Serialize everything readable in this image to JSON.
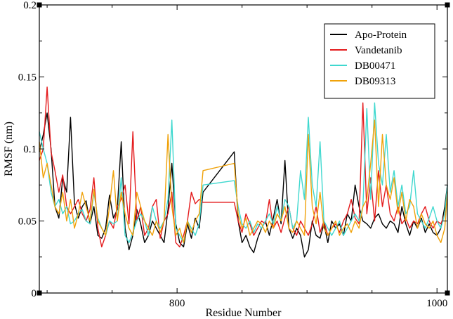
{
  "chart_data": {
    "type": "line",
    "title": "",
    "xlabel": "Residue Number",
    "ylabel": "RMSF (nm)",
    "xlim": [
      694,
      1008
    ],
    "ylim": [
      0,
      0.2
    ],
    "xticks": [
      {
        "value": 800,
        "label": "800"
      },
      {
        "value": 1000,
        "label": "1000"
      }
    ],
    "yticks": [
      {
        "value": 0,
        "label": "0"
      },
      {
        "value": 0.05,
        "label": "0.05"
      },
      {
        "value": 0.1,
        "label": "0.1"
      },
      {
        "value": 0.15,
        "label": "0.15"
      },
      {
        "value": 0.2,
        "label": "0.2"
      }
    ],
    "grid": false,
    "legend_position": "top-right",
    "series": [
      {
        "name": "Apo-Protein",
        "color": "#000000",
        "x": [
          694,
          697,
          700,
          703,
          706,
          709,
          712,
          715,
          718,
          721,
          724,
          727,
          730,
          733,
          736,
          739,
          742,
          745,
          748,
          751,
          754,
          757,
          760,
          763,
          766,
          769,
          772,
          775,
          778,
          781,
          784,
          787,
          790,
          793,
          796,
          799,
          802,
          805,
          808,
          811,
          814,
          817,
          820,
          844,
          847,
          850,
          853,
          856,
          859,
          862,
          865,
          868,
          871,
          874,
          877,
          880,
          883,
          886,
          889,
          892,
          895,
          898,
          901,
          904,
          907,
          910,
          913,
          916,
          919,
          922,
          925,
          928,
          931,
          934,
          937,
          940,
          943,
          946,
          949,
          952,
          955,
          958,
          961,
          964,
          967,
          970,
          973,
          976,
          979,
          982,
          985,
          988,
          991,
          994,
          997,
          1000,
          1003,
          1006,
          1008
        ],
        "values": [
          0.098,
          0.11,
          0.125,
          0.1,
          0.06,
          0.052,
          0.08,
          0.07,
          0.122,
          0.062,
          0.052,
          0.06,
          0.064,
          0.048,
          0.06,
          0.04,
          0.038,
          0.045,
          0.068,
          0.052,
          0.058,
          0.105,
          0.045,
          0.03,
          0.04,
          0.058,
          0.048,
          0.035,
          0.04,
          0.05,
          0.045,
          0.04,
          0.035,
          0.058,
          0.09,
          0.048,
          0.035,
          0.032,
          0.048,
          0.038,
          0.052,
          0.045,
          0.07,
          0.098,
          0.05,
          0.035,
          0.04,
          0.032,
          0.028,
          0.038,
          0.045,
          0.05,
          0.04,
          0.052,
          0.065,
          0.048,
          0.092,
          0.045,
          0.038,
          0.045,
          0.04,
          0.025,
          0.03,
          0.05,
          0.04,
          0.038,
          0.048,
          0.035,
          0.05,
          0.045,
          0.048,
          0.04,
          0.055,
          0.05,
          0.075,
          0.06,
          0.05,
          0.048,
          0.045,
          0.052,
          0.055,
          0.048,
          0.045,
          0.05,
          0.048,
          0.042,
          0.06,
          0.048,
          0.04,
          0.05,
          0.045,
          0.052,
          0.042,
          0.048,
          0.042,
          0.04,
          0.045,
          0.06,
          0.075
        ]
      },
      {
        "name": "Vandetanib",
        "color": "#e41a1c",
        "x": [
          694,
          697,
          700,
          703,
          706,
          709,
          712,
          715,
          718,
          721,
          724,
          727,
          730,
          733,
          736,
          739,
          742,
          745,
          748,
          751,
          754,
          757,
          760,
          763,
          766,
          769,
          772,
          775,
          778,
          781,
          784,
          787,
          790,
          793,
          796,
          799,
          802,
          805,
          808,
          811,
          814,
          817,
          820,
          844,
          847,
          850,
          853,
          856,
          859,
          862,
          865,
          868,
          871,
          874,
          877,
          880,
          883,
          886,
          889,
          892,
          895,
          898,
          901,
          904,
          907,
          910,
          913,
          916,
          919,
          922,
          925,
          928,
          931,
          934,
          937,
          940,
          943,
          946,
          949,
          952,
          955,
          958,
          961,
          964,
          967,
          970,
          973,
          976,
          979,
          982,
          985,
          988,
          991,
          994,
          997,
          1000,
          1003,
          1006,
          1008
        ],
        "values": [
          0.092,
          0.1,
          0.143,
          0.098,
          0.085,
          0.07,
          0.082,
          0.06,
          0.055,
          0.06,
          0.065,
          0.055,
          0.05,
          0.058,
          0.08,
          0.045,
          0.032,
          0.04,
          0.05,
          0.045,
          0.06,
          0.065,
          0.075,
          0.048,
          0.112,
          0.05,
          0.06,
          0.04,
          0.045,
          0.06,
          0.065,
          0.038,
          0.05,
          0.055,
          0.07,
          0.035,
          0.032,
          0.04,
          0.05,
          0.07,
          0.062,
          0.065,
          0.063,
          0.063,
          0.05,
          0.042,
          0.055,
          0.048,
          0.04,
          0.045,
          0.05,
          0.048,
          0.065,
          0.045,
          0.05,
          0.042,
          0.052,
          0.06,
          0.045,
          0.04,
          0.05,
          0.045,
          0.04,
          0.048,
          0.06,
          0.042,
          0.05,
          0.04,
          0.045,
          0.048,
          0.042,
          0.05,
          0.055,
          0.065,
          0.052,
          0.048,
          0.132,
          0.055,
          0.08,
          0.05,
          0.085,
          0.06,
          0.075,
          0.055,
          0.05,
          0.06,
          0.048,
          0.052,
          0.045,
          0.05,
          0.048,
          0.055,
          0.06,
          0.05,
          0.045,
          0.05,
          0.048,
          0.055,
          0.065
        ]
      },
      {
        "name": "DB00471",
        "color": "#3fd8cf",
        "x": [
          694,
          697,
          700,
          703,
          706,
          709,
          712,
          715,
          718,
          721,
          724,
          727,
          730,
          733,
          736,
          739,
          742,
          745,
          748,
          751,
          754,
          757,
          760,
          763,
          766,
          769,
          772,
          775,
          778,
          781,
          784,
          787,
          790,
          793,
          796,
          799,
          802,
          805,
          808,
          811,
          814,
          817,
          820,
          844,
          847,
          850,
          853,
          856,
          859,
          862,
          865,
          868,
          871,
          874,
          877,
          880,
          883,
          886,
          889,
          892,
          895,
          898,
          901,
          904,
          907,
          910,
          913,
          916,
          919,
          922,
          925,
          928,
          931,
          934,
          937,
          940,
          943,
          946,
          949,
          952,
          955,
          958,
          961,
          964,
          967,
          970,
          973,
          976,
          979,
          982,
          985,
          988,
          991,
          994,
          997,
          1000,
          1003,
          1006,
          1008
        ],
        "values": [
          0.112,
          0.1,
          0.09,
          0.07,
          0.06,
          0.065,
          0.055,
          0.06,
          0.048,
          0.05,
          0.055,
          0.058,
          0.05,
          0.048,
          0.07,
          0.052,
          0.045,
          0.04,
          0.05,
          0.048,
          0.05,
          0.08,
          0.04,
          0.035,
          0.042,
          0.05,
          0.055,
          0.05,
          0.04,
          0.06,
          0.05,
          0.045,
          0.05,
          0.065,
          0.12,
          0.045,
          0.04,
          0.035,
          0.05,
          0.045,
          0.04,
          0.048,
          0.075,
          0.078,
          0.06,
          0.048,
          0.045,
          0.05,
          0.042,
          0.048,
          0.045,
          0.05,
          0.055,
          0.048,
          0.06,
          0.05,
          0.065,
          0.06,
          0.045,
          0.05,
          0.085,
          0.065,
          0.122,
          0.075,
          0.06,
          0.105,
          0.05,
          0.045,
          0.04,
          0.045,
          0.05,
          0.04,
          0.045,
          0.05,
          0.055,
          0.05,
          0.06,
          0.128,
          0.065,
          0.132,
          0.09,
          0.075,
          0.11,
          0.07,
          0.085,
          0.06,
          0.075,
          0.055,
          0.06,
          0.085,
          0.055,
          0.05,
          0.045,
          0.052,
          0.06,
          0.05,
          0.045,
          0.055,
          0.075
        ]
      },
      {
        "name": "DB09313",
        "color": "#f0a20a",
        "x": [
          694,
          697,
          700,
          703,
          706,
          709,
          712,
          715,
          718,
          721,
          724,
          727,
          730,
          733,
          736,
          739,
          742,
          745,
          748,
          751,
          754,
          757,
          760,
          763,
          766,
          769,
          772,
          775,
          778,
          781,
          784,
          787,
          790,
          793,
          796,
          799,
          802,
          805,
          808,
          811,
          814,
          817,
          820,
          844,
          847,
          850,
          853,
          856,
          859,
          862,
          865,
          868,
          871,
          874,
          877,
          880,
          883,
          886,
          889,
          892,
          895,
          898,
          901,
          904,
          907,
          910,
          913,
          916,
          919,
          922,
          925,
          928,
          931,
          934,
          937,
          940,
          943,
          946,
          949,
          952,
          955,
          958,
          961,
          964,
          967,
          970,
          973,
          976,
          979,
          982,
          985,
          988,
          991,
          994,
          997,
          1000,
          1003,
          1006,
          1008
        ],
        "values": [
          0.105,
          0.08,
          0.09,
          0.075,
          0.06,
          0.055,
          0.07,
          0.05,
          0.065,
          0.045,
          0.055,
          0.07,
          0.06,
          0.05,
          0.072,
          0.05,
          0.045,
          0.04,
          0.06,
          0.085,
          0.05,
          0.07,
          0.055,
          0.045,
          0.04,
          0.07,
          0.06,
          0.05,
          0.045,
          0.04,
          0.05,
          0.042,
          0.05,
          0.11,
          0.06,
          0.04,
          0.045,
          0.035,
          0.05,
          0.042,
          0.05,
          0.055,
          0.085,
          0.09,
          0.055,
          0.045,
          0.052,
          0.04,
          0.045,
          0.05,
          0.048,
          0.042,
          0.05,
          0.045,
          0.055,
          0.05,
          0.06,
          0.045,
          0.042,
          0.05,
          0.045,
          0.04,
          0.11,
          0.06,
          0.048,
          0.07,
          0.045,
          0.04,
          0.045,
          0.05,
          0.04,
          0.045,
          0.048,
          0.042,
          0.05,
          0.045,
          0.06,
          0.065,
          0.09,
          0.12,
          0.06,
          0.11,
          0.075,
          0.065,
          0.08,
          0.055,
          0.07,
          0.05,
          0.065,
          0.06,
          0.045,
          0.055,
          0.048,
          0.045,
          0.05,
          0.04,
          0.035,
          0.045,
          0.07
        ]
      }
    ]
  }
}
